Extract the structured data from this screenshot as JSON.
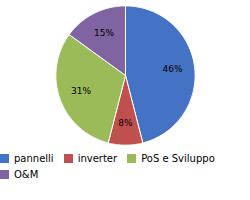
{
  "chart_data": {
    "type": "pie",
    "categories": [
      "pannelli",
      "inverter",
      "PoS e Sviluppo",
      "O&M"
    ],
    "values": [
      46,
      8,
      31,
      15
    ],
    "value_labels": [
      "46%",
      "8%",
      "31%",
      "15%"
    ],
    "colors": [
      "#4472C4",
      "#C0504D",
      "#9BBB59",
      "#8064A2"
    ],
    "data_labels": true,
    "legend": "bottom"
  }
}
